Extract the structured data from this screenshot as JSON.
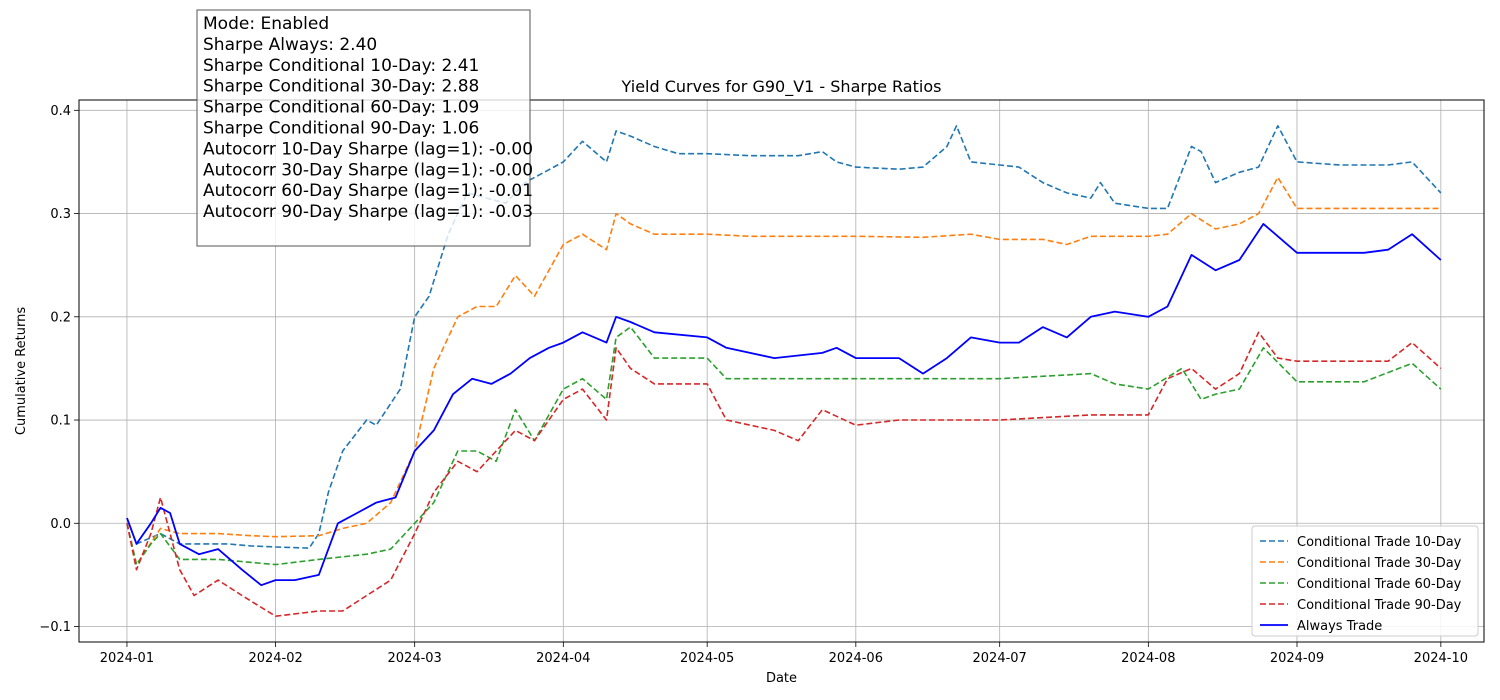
{
  "chart_data": {
    "type": "line",
    "title": "Yield Curves for G90_V1 - Sharpe Ratios",
    "xlabel": "Date",
    "ylabel": "Cumulative Returns",
    "x_ticks": [
      "2024-01",
      "2024-02",
      "2024-03",
      "2024-04",
      "2024-05",
      "2024-06",
      "2024-07",
      "2024-08",
      "2024-09",
      "2024-10"
    ],
    "y_ticks": [
      "−0.1",
      "0.0",
      "0.1",
      "0.2",
      "0.3",
      "0.4"
    ],
    "ylim": [
      -0.115,
      0.41
    ],
    "xlim": [
      "2023-12-22",
      "2024-10-10"
    ],
    "grid": true,
    "legend_position": "lower-right",
    "series": [
      {
        "name": "Conditional Trade 10-Day",
        "color": "#1f77b4",
        "style": "dashed",
        "x": [
          "2024-01-01",
          "2024-01-03",
          "2024-01-08",
          "2024-01-12",
          "2024-01-16",
          "2024-01-22",
          "2024-01-27",
          "2024-02-01",
          "2024-02-08",
          "2024-02-10",
          "2024-02-12",
          "2024-02-15",
          "2024-02-20",
          "2024-02-22",
          "2024-02-27",
          "2024-03-01",
          "2024-03-04",
          "2024-03-08",
          "2024-03-12",
          "2024-03-16",
          "2024-03-20",
          "2024-03-24",
          "2024-03-28",
          "2024-04-01",
          "2024-04-05",
          "2024-04-10",
          "2024-04-12",
          "2024-04-15",
          "2024-04-20",
          "2024-04-25",
          "2024-05-01",
          "2024-05-10",
          "2024-05-20",
          "2024-05-25",
          "2024-05-28",
          "2024-06-01",
          "2024-06-10",
          "2024-06-15",
          "2024-06-20",
          "2024-06-22",
          "2024-06-25",
          "2024-07-01",
          "2024-07-05",
          "2024-07-10",
          "2024-07-15",
          "2024-07-20",
          "2024-07-22",
          "2024-07-25",
          "2024-08-01",
          "2024-08-05",
          "2024-08-10",
          "2024-08-12",
          "2024-08-15",
          "2024-08-20",
          "2024-08-24",
          "2024-08-28",
          "2024-09-01",
          "2024-09-10",
          "2024-09-20",
          "2024-09-25",
          "2024-10-01"
        ],
        "values": [
          0.005,
          -0.02,
          -0.01,
          -0.02,
          -0.02,
          -0.02,
          -0.022,
          -0.023,
          -0.024,
          -0.01,
          0.03,
          0.07,
          0.1,
          0.095,
          0.13,
          0.2,
          0.22,
          0.28,
          0.32,
          0.315,
          0.31,
          0.33,
          0.34,
          0.35,
          0.37,
          0.35,
          0.38,
          0.375,
          0.365,
          0.358,
          0.358,
          0.356,
          0.356,
          0.36,
          0.35,
          0.345,
          0.343,
          0.345,
          0.365,
          0.385,
          0.35,
          0.347,
          0.345,
          0.33,
          0.32,
          0.315,
          0.33,
          0.31,
          0.305,
          0.305,
          0.365,
          0.36,
          0.33,
          0.34,
          0.345,
          0.385,
          0.35,
          0.347,
          0.347,
          0.35,
          0.32
        ]
      },
      {
        "name": "Conditional Trade 30-Day",
        "color": "#ff7f0e",
        "style": "dashed",
        "x": [
          "2024-01-01",
          "2024-01-03",
          "2024-01-08",
          "2024-01-12",
          "2024-01-20",
          "2024-01-27",
          "2024-02-01",
          "2024-02-10",
          "2024-02-15",
          "2024-02-20",
          "2024-02-25",
          "2024-03-01",
          "2024-03-05",
          "2024-03-10",
          "2024-03-14",
          "2024-03-18",
          "2024-03-22",
          "2024-03-26",
          "2024-04-01",
          "2024-04-05",
          "2024-04-10",
          "2024-04-12",
          "2024-04-15",
          "2024-04-20",
          "2024-05-01",
          "2024-05-10",
          "2024-06-01",
          "2024-06-15",
          "2024-06-25",
          "2024-07-01",
          "2024-07-10",
          "2024-07-15",
          "2024-07-20",
          "2024-07-25",
          "2024-08-01",
          "2024-08-05",
          "2024-08-10",
          "2024-08-15",
          "2024-08-20",
          "2024-08-24",
          "2024-08-28",
          "2024-09-01",
          "2024-09-15",
          "2024-09-25",
          "2024-10-01"
        ],
        "values": [
          0.0,
          -0.04,
          -0.005,
          -0.01,
          -0.01,
          -0.012,
          -0.013,
          -0.012,
          -0.005,
          0.0,
          0.02,
          0.07,
          0.15,
          0.2,
          0.21,
          0.21,
          0.24,
          0.22,
          0.27,
          0.28,
          0.265,
          0.3,
          0.29,
          0.28,
          0.28,
          0.278,
          0.278,
          0.277,
          0.28,
          0.275,
          0.275,
          0.27,
          0.278,
          0.278,
          0.278,
          0.28,
          0.3,
          0.285,
          0.29,
          0.3,
          0.335,
          0.305,
          0.305,
          0.305,
          0.305
        ]
      },
      {
        "name": "Conditional Trade 60-Day",
        "color": "#2ca02c",
        "style": "dashed",
        "x": [
          "2024-01-01",
          "2024-01-03",
          "2024-01-06",
          "2024-01-08",
          "2024-01-12",
          "2024-01-20",
          "2024-02-01",
          "2024-02-10",
          "2024-02-20",
          "2024-02-25",
          "2024-03-01",
          "2024-03-05",
          "2024-03-10",
          "2024-03-14",
          "2024-03-18",
          "2024-03-22",
          "2024-03-26",
          "2024-04-01",
          "2024-04-05",
          "2024-04-10",
          "2024-04-12",
          "2024-04-15",
          "2024-04-20",
          "2024-05-01",
          "2024-05-05",
          "2024-05-15",
          "2024-06-01",
          "2024-06-15",
          "2024-07-01",
          "2024-07-20",
          "2024-07-25",
          "2024-08-01",
          "2024-08-08",
          "2024-08-12",
          "2024-08-15",
          "2024-08-20",
          "2024-08-25",
          "2024-09-01",
          "2024-09-15",
          "2024-09-25",
          "2024-10-01"
        ],
        "values": [
          0.0,
          -0.04,
          -0.02,
          -0.01,
          -0.035,
          -0.035,
          -0.04,
          -0.035,
          -0.03,
          -0.025,
          0.0,
          0.02,
          0.07,
          0.07,
          0.06,
          0.11,
          0.08,
          0.13,
          0.14,
          0.12,
          0.18,
          0.19,
          0.16,
          0.16,
          0.14,
          0.14,
          0.14,
          0.14,
          0.14,
          0.145,
          0.135,
          0.13,
          0.15,
          0.12,
          0.125,
          0.13,
          0.17,
          0.137,
          0.137,
          0.155,
          0.13
        ]
      },
      {
        "name": "Conditional Trade 90-Day",
        "color": "#d62728",
        "style": "dashed",
        "x": [
          "2024-01-01",
          "2024-01-03",
          "2024-01-06",
          "2024-01-08",
          "2024-01-12",
          "2024-01-15",
          "2024-01-20",
          "2024-01-25",
          "2024-02-01",
          "2024-02-10",
          "2024-02-15",
          "2024-02-20",
          "2024-02-25",
          "2024-03-01",
          "2024-03-05",
          "2024-03-10",
          "2024-03-14",
          "2024-03-18",
          "2024-03-22",
          "2024-03-26",
          "2024-04-01",
          "2024-04-05",
          "2024-04-10",
          "2024-04-12",
          "2024-04-15",
          "2024-04-20",
          "2024-05-01",
          "2024-05-05",
          "2024-05-15",
          "2024-05-20",
          "2024-05-25",
          "2024-06-01",
          "2024-06-10",
          "2024-07-01",
          "2024-07-20",
          "2024-08-01",
          "2024-08-05",
          "2024-08-10",
          "2024-08-15",
          "2024-08-20",
          "2024-08-24",
          "2024-08-28",
          "2024-09-01",
          "2024-09-20",
          "2024-09-25",
          "2024-10-01"
        ],
        "values": [
          0.0,
          -0.045,
          -0.01,
          0.025,
          -0.045,
          -0.07,
          -0.055,
          -0.07,
          -0.09,
          -0.085,
          -0.085,
          -0.07,
          -0.055,
          -0.01,
          0.03,
          0.06,
          0.05,
          0.07,
          0.09,
          0.08,
          0.12,
          0.13,
          0.1,
          0.17,
          0.15,
          0.135,
          0.135,
          0.1,
          0.09,
          0.08,
          0.11,
          0.095,
          0.1,
          0.1,
          0.105,
          0.105,
          0.14,
          0.15,
          0.13,
          0.145,
          0.185,
          0.16,
          0.157,
          0.157,
          0.175,
          0.15
        ]
      },
      {
        "name": "Always Trade",
        "color": "#0000ff",
        "style": "solid",
        "x": [
          "2024-01-01",
          "2024-01-03",
          "2024-01-06",
          "2024-01-08",
          "2024-01-10",
          "2024-01-12",
          "2024-01-16",
          "2024-01-20",
          "2024-01-25",
          "2024-01-29",
          "2024-02-01",
          "2024-02-05",
          "2024-02-10",
          "2024-02-14",
          "2024-02-18",
          "2024-02-22",
          "2024-02-26",
          "2024-03-01",
          "2024-03-05",
          "2024-03-09",
          "2024-03-13",
          "2024-03-17",
          "2024-03-21",
          "2024-03-25",
          "2024-03-29",
          "2024-04-01",
          "2024-04-05",
          "2024-04-10",
          "2024-04-12",
          "2024-04-15",
          "2024-04-20",
          "2024-05-01",
          "2024-05-05",
          "2024-05-15",
          "2024-05-25",
          "2024-05-28",
          "2024-06-01",
          "2024-06-10",
          "2024-06-15",
          "2024-06-20",
          "2024-06-25",
          "2024-07-01",
          "2024-07-05",
          "2024-07-10",
          "2024-07-15",
          "2024-07-20",
          "2024-07-25",
          "2024-08-01",
          "2024-08-05",
          "2024-08-10",
          "2024-08-15",
          "2024-08-20",
          "2024-08-25",
          "2024-09-01",
          "2024-09-15",
          "2024-09-20",
          "2024-09-25",
          "2024-10-01"
        ],
        "values": [
          0.005,
          -0.02,
          0.0,
          0.015,
          0.01,
          -0.02,
          -0.03,
          -0.025,
          -0.045,
          -0.06,
          -0.055,
          -0.055,
          -0.05,
          0.0,
          0.01,
          0.02,
          0.025,
          0.07,
          0.09,
          0.125,
          0.14,
          0.135,
          0.145,
          0.16,
          0.17,
          0.175,
          0.185,
          0.175,
          0.2,
          0.195,
          0.185,
          0.18,
          0.17,
          0.16,
          0.165,
          0.17,
          0.16,
          0.16,
          0.145,
          0.16,
          0.18,
          0.175,
          0.175,
          0.19,
          0.18,
          0.2,
          0.205,
          0.2,
          0.21,
          0.26,
          0.245,
          0.255,
          0.29,
          0.262,
          0.262,
          0.265,
          0.28,
          0.255
        ]
      }
    ],
    "stats_box": [
      "Mode: Enabled",
      "Sharpe Always: 2.40",
      "Sharpe Conditional 10-Day: 2.41",
      "Sharpe Conditional 30-Day: 2.88",
      "Sharpe Conditional 60-Day: 1.09",
      "Sharpe Conditional 90-Day: 1.06",
      "Autocorr 10-Day Sharpe (lag=1): -0.00",
      "Autocorr 30-Day Sharpe (lag=1): -0.00",
      "Autocorr 60-Day Sharpe (lag=1): -0.01",
      "Autocorr 90-Day Sharpe (lag=1): -0.03"
    ]
  }
}
